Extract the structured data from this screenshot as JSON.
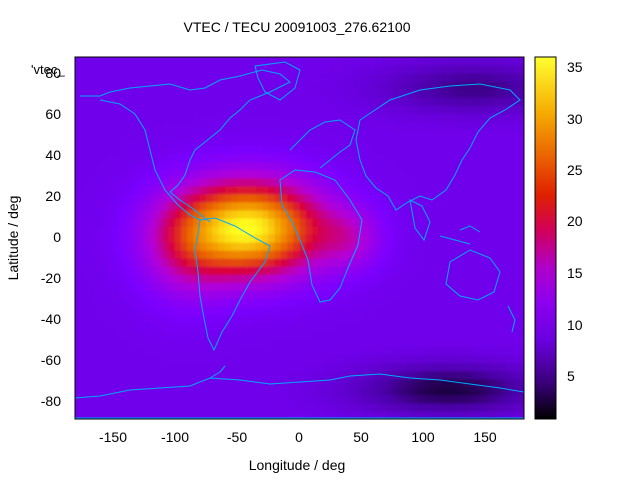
{
  "chart_data": {
    "type": "heatmap",
    "title": "VTEC / TECU 20091003_276.62100",
    "xlabel": "Longitude / deg",
    "ylabel": "Latitude / deg",
    "xlim": [
      -180,
      180
    ],
    "ylim": [
      -90,
      90
    ],
    "xticks": [
      "-150",
      "-100",
      "-50",
      "0",
      "50",
      "100",
      "150"
    ],
    "yticks": [
      "80",
      "60",
      "40",
      "20",
      "0",
      "-20",
      "-40",
      "-60",
      "-80"
    ],
    "colorbar": {
      "range": [
        1,
        36.5
      ],
      "ticks": [
        "35",
        "30",
        "25",
        "20",
        "15",
        "10",
        "5"
      ],
      "palette": [
        "#000000",
        "#4b00a8",
        "#7b00ff",
        "#b400d8",
        "#d80040",
        "#e85a00",
        "#f5a400",
        "#ffff20"
      ]
    },
    "series_label": "'vtec_",
    "peak_center": {
      "lon": -40,
      "lat": 5,
      "value": 36
    },
    "background_value": 10,
    "low_regions": [
      {
        "lon": 120,
        "lat": -75,
        "value": 3
      },
      {
        "lon": 140,
        "lat": 75,
        "value": 5
      }
    ],
    "coastline_color": "#00aaff"
  }
}
